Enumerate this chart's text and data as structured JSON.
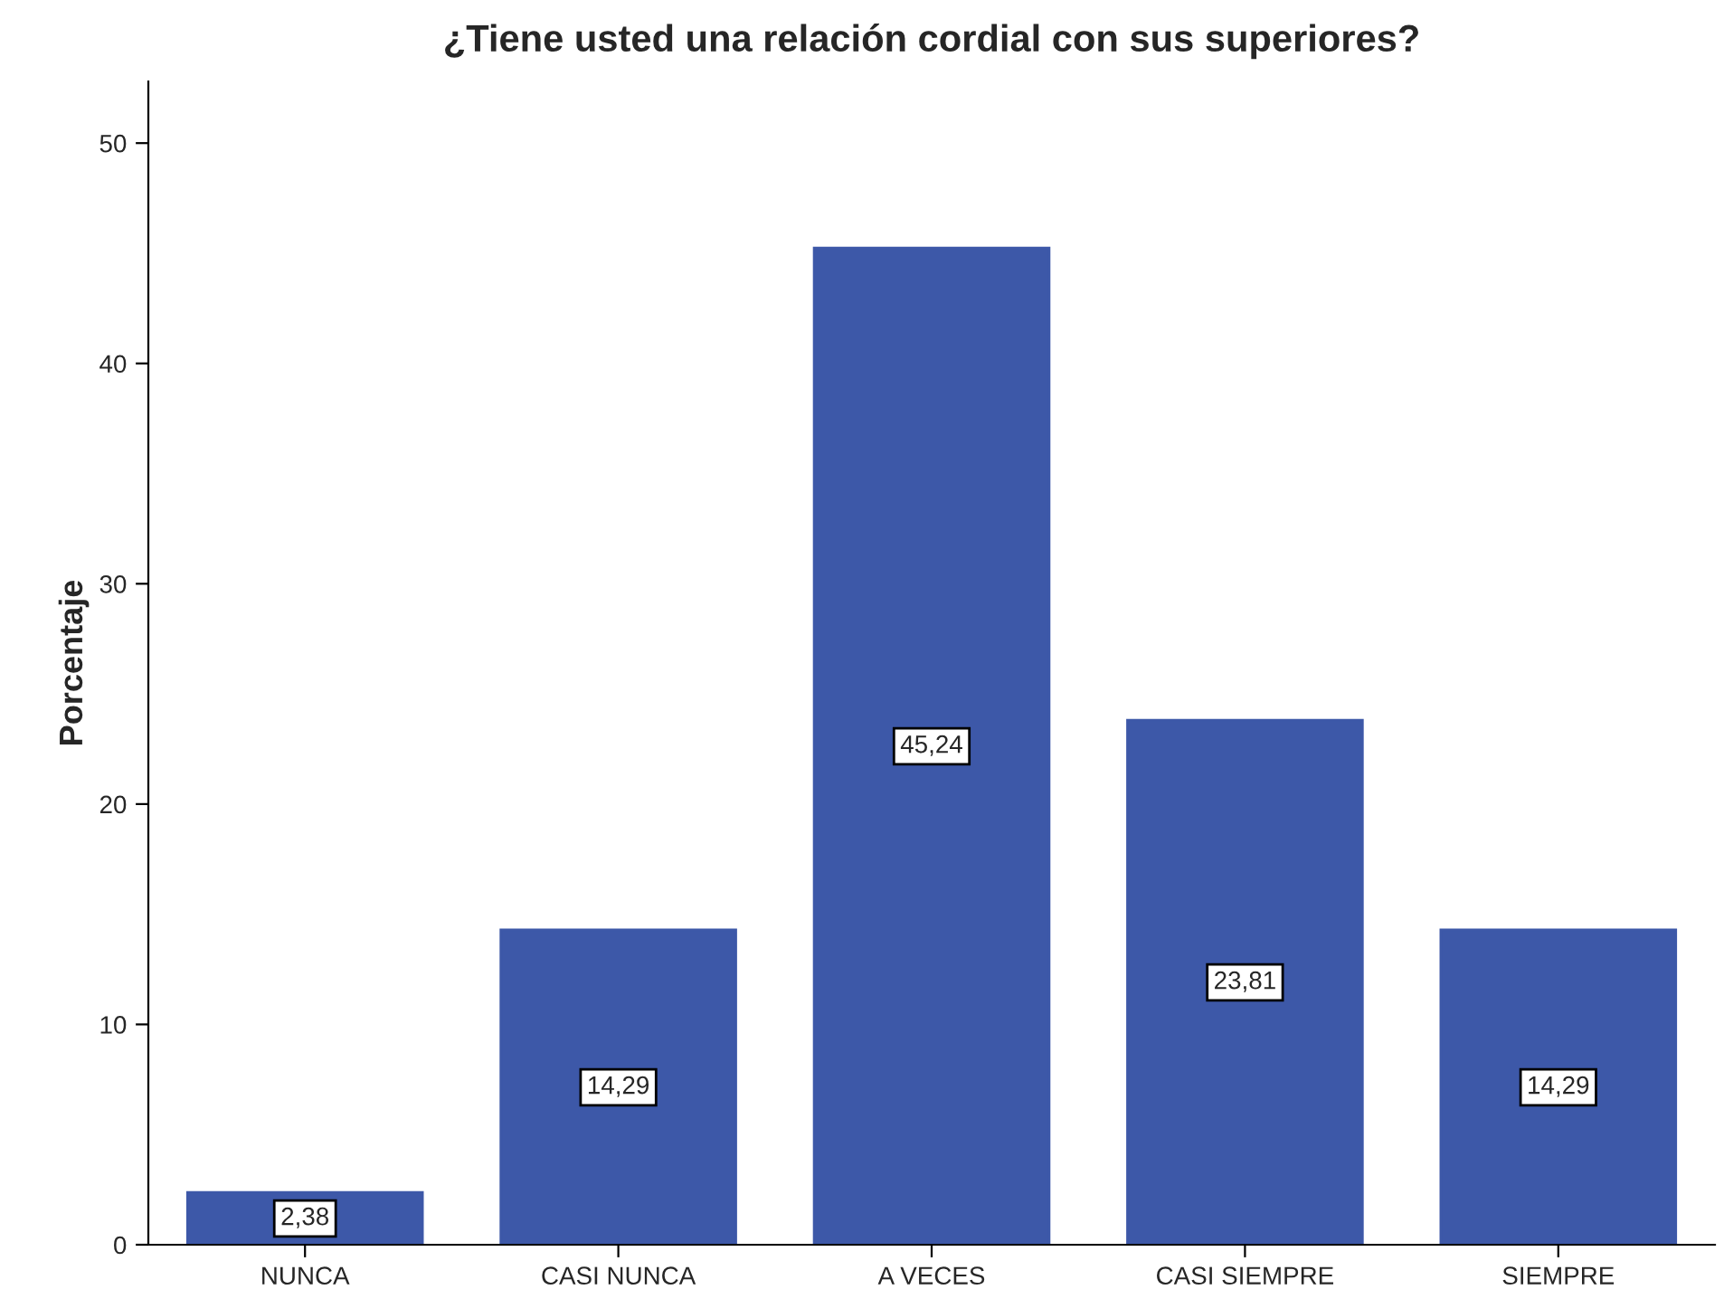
{
  "chart_data": {
    "type": "bar",
    "title": "¿Tiene usted una relación cordial con sus superiores?",
    "ylabel": "Porcentaje",
    "categories": [
      "NUNCA",
      "CASI NUNCA",
      "A VECES",
      "CASI SIEMPRE",
      "SIEMPRE"
    ],
    "values": [
      2.38,
      14.29,
      45.24,
      23.81,
      14.29
    ],
    "value_labels": [
      "2,38",
      "14,29",
      "45,24",
      "23,81",
      "14,29"
    ],
    "color": "#3d58a8",
    "ylim": [
      0,
      52.8
    ],
    "yticks": [
      0,
      10,
      20,
      30,
      40,
      50
    ],
    "grid": false,
    "legend": false
  }
}
